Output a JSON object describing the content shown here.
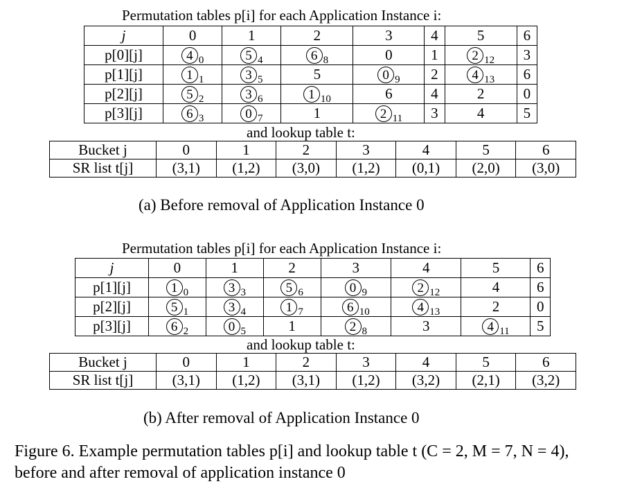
{
  "panel_a": {
    "perm_caption": "Permutation tables p[i] for each Application Instance i:",
    "perm_header": [
      "j",
      "0",
      "1",
      "2",
      "3",
      "4",
      "5",
      "6"
    ],
    "perm_rows": [
      {
        "label": "p[0][j]",
        "cells": [
          {
            "v": "4",
            "c": true,
            "s": "0"
          },
          {
            "v": "5",
            "c": true,
            "s": "4"
          },
          {
            "v": "6",
            "c": true,
            "s": "8"
          },
          {
            "v": "0",
            "c": false,
            "s": ""
          },
          {
            "v": "1",
            "c": false,
            "s": ""
          },
          {
            "v": "2",
            "c": true,
            "s": "12"
          },
          {
            "v": "3",
            "c": false,
            "s": ""
          }
        ]
      },
      {
        "label": "p[1][j]",
        "cells": [
          {
            "v": "1",
            "c": true,
            "s": "1"
          },
          {
            "v": "3",
            "c": true,
            "s": "5"
          },
          {
            "v": "5",
            "c": false,
            "s": ""
          },
          {
            "v": "0",
            "c": true,
            "s": "9"
          },
          {
            "v": "2",
            "c": false,
            "s": ""
          },
          {
            "v": "4",
            "c": true,
            "s": "13"
          },
          {
            "v": "6",
            "c": false,
            "s": ""
          }
        ]
      },
      {
        "label": "p[2][j]",
        "cells": [
          {
            "v": "5",
            "c": true,
            "s": "2"
          },
          {
            "v": "3",
            "c": true,
            "s": "6"
          },
          {
            "v": "1",
            "c": true,
            "s": "10"
          },
          {
            "v": "6",
            "c": false,
            "s": ""
          },
          {
            "v": "4",
            "c": false,
            "s": ""
          },
          {
            "v": "2",
            "c": false,
            "s": ""
          },
          {
            "v": "0",
            "c": false,
            "s": ""
          }
        ]
      },
      {
        "label": "p[3][j]",
        "cells": [
          {
            "v": "6",
            "c": true,
            "s": "3"
          },
          {
            "v": "0",
            "c": true,
            "s": "7"
          },
          {
            "v": "1",
            "c": false,
            "s": ""
          },
          {
            "v": "2",
            "c": true,
            "s": "11"
          },
          {
            "v": "3",
            "c": false,
            "s": ""
          },
          {
            "v": "4",
            "c": false,
            "s": ""
          },
          {
            "v": "5",
            "c": false,
            "s": ""
          }
        ]
      }
    ],
    "lookup_caption": "and lookup table t:",
    "lookup_header": [
      "Bucket j",
      "0",
      "1",
      "2",
      "3",
      "4",
      "5",
      "6"
    ],
    "lookup_row": [
      "SR list t[j]",
      "(3,1)",
      "(1,2)",
      "(3,0)",
      "(1,2)",
      "(0,1)",
      "(2,0)",
      "(3,0)"
    ],
    "subcaption": "(a) Before removal of Application Instance 0"
  },
  "panel_b": {
    "perm_caption": "Permutation tables p[i] for each Application Instance i:",
    "perm_header": [
      "j",
      "0",
      "1",
      "2",
      "3",
      "4",
      "5",
      "6"
    ],
    "perm_rows": [
      {
        "label": "p[1][j]",
        "cells": [
          {
            "v": "1",
            "c": true,
            "s": "0"
          },
          {
            "v": "3",
            "c": true,
            "s": "3"
          },
          {
            "v": "5",
            "c": true,
            "s": "6"
          },
          {
            "v": "0",
            "c": true,
            "s": "9"
          },
          {
            "v": "2",
            "c": true,
            "s": "12"
          },
          {
            "v": "4",
            "c": false,
            "s": ""
          },
          {
            "v": "6",
            "c": false,
            "s": ""
          }
        ]
      },
      {
        "label": "p[2][j]",
        "cells": [
          {
            "v": "5",
            "c": true,
            "s": "1"
          },
          {
            "v": "3",
            "c": true,
            "s": "4"
          },
          {
            "v": "1",
            "c": true,
            "s": "7"
          },
          {
            "v": "6",
            "c": true,
            "s": "10"
          },
          {
            "v": "4",
            "c": true,
            "s": "13"
          },
          {
            "v": "2",
            "c": false,
            "s": ""
          },
          {
            "v": "0",
            "c": false,
            "s": ""
          }
        ]
      },
      {
        "label": "p[3][j]",
        "cells": [
          {
            "v": "6",
            "c": true,
            "s": "2"
          },
          {
            "v": "0",
            "c": true,
            "s": "5"
          },
          {
            "v": "1",
            "c": false,
            "s": ""
          },
          {
            "v": "2",
            "c": true,
            "s": "8"
          },
          {
            "v": "3",
            "c": false,
            "s": ""
          },
          {
            "v": "4",
            "c": true,
            "s": "11"
          },
          {
            "v": "5",
            "c": false,
            "s": ""
          }
        ]
      }
    ],
    "lookup_caption": "and lookup table t:",
    "lookup_header": [
      "Bucket j",
      "0",
      "1",
      "2",
      "3",
      "4",
      "5",
      "6"
    ],
    "lookup_row": [
      "SR list t[j]",
      "(3,1)",
      "(1,2)",
      "(3,1)",
      "(1,2)",
      "(3,2)",
      "(2,1)",
      "(3,2)"
    ],
    "subcaption": "(b) After removal of Application Instance 0"
  },
  "figure_caption": "Figure 6.  Example permutation tables p[i] and lookup table t (C = 2, M = 7, N = 4), before and after removal of application instance 0"
}
